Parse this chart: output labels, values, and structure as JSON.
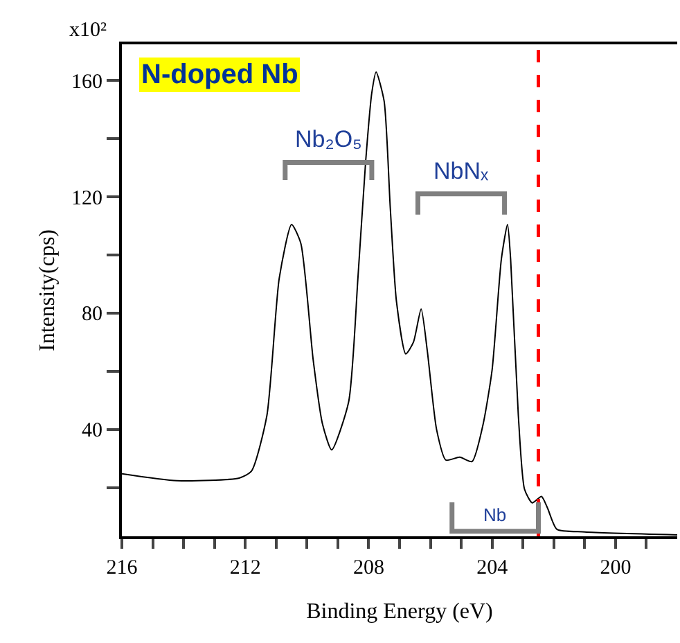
{
  "chart_data": {
    "type": "line",
    "title": "N-doped Nb",
    "xlabel": "Binding Energy (eV)",
    "ylabel": "Intensity(cps)",
    "annotations": [
      "x10²",
      "Nb₂O₅",
      "NbNₓ",
      {
        "text": "Nb",
        "x": 202.5,
        "y": 15
      }
    ],
    "x": [
      216,
      214.2,
      212.2,
      211.8,
      211.3,
      210.9,
      210.5,
      210.2,
      209.8,
      209.5,
      209.2,
      208.65,
      208.35,
      208.1,
      207.9,
      207.76,
      207.5,
      207.3,
      207.1,
      206.8,
      206.55,
      206.3,
      206.1,
      205.8,
      205.5,
      205.05,
      204.65,
      204.3,
      204.0,
      203.7,
      203.5,
      203.4,
      203.15,
      202.95,
      202.7,
      202.4,
      202.2,
      201.9,
      201.0,
      198.0
    ],
    "series": [
      {
        "color": "#000000",
        "values": [
          24.8,
          22.4,
          23.3,
          25.7,
          44.8,
          92,
          110.5,
          104,
          64,
          42,
          33,
          49.5,
          92,
          131.9,
          155.7,
          162.9,
          152.9,
          116,
          84,
          66,
          70,
          81.4,
          67,
          40,
          29.5,
          30.5,
          29,
          41.4,
          60.5,
          98.6,
          110.5,
          98.6,
          44.8,
          19.5,
          14.8,
          17,
          12.9,
          5.7,
          4.8,
          3.8
        ]
      }
    ],
    "xlim": [
      216,
      198
    ],
    "ylim": [
      3.3,
      172.4
    ],
    "xticks": [
      216,
      {
        "value": 215,
        "label": null
      },
      {
        "value": 214,
        "label": null
      },
      {
        "value": 213,
        "label": null
      },
      212,
      {
        "value": 211,
        "label": null
      },
      {
        "value": 210,
        "label": null
      },
      {
        "value": 209,
        "label": null
      },
      208,
      {
        "value": 207,
        "label": null
      },
      {
        "value": 206,
        "label": null
      },
      {
        "value": 205,
        "label": null
      },
      204,
      {
        "value": 203,
        "label": null
      },
      {
        "value": 202,
        "label": null
      },
      {
        "value": 201,
        "label": null
      },
      200,
      {
        "value": 199,
        "label": null
      }
    ],
    "yticks": [
      {
        "value": 20,
        "label": null
      },
      40,
      {
        "value": 60,
        "label": null
      },
      80,
      {
        "value": 100,
        "label": null
      },
      120,
      {
        "value": 140,
        "label": null
      },
      160
    ],
    "ref_lines": [
      {
        "axis": "x",
        "value": 202.5,
        "color": "#ff0000",
        "line_style": "dashed"
      }
    ],
    "marker": "none",
    "line_style": "solid"
  }
}
